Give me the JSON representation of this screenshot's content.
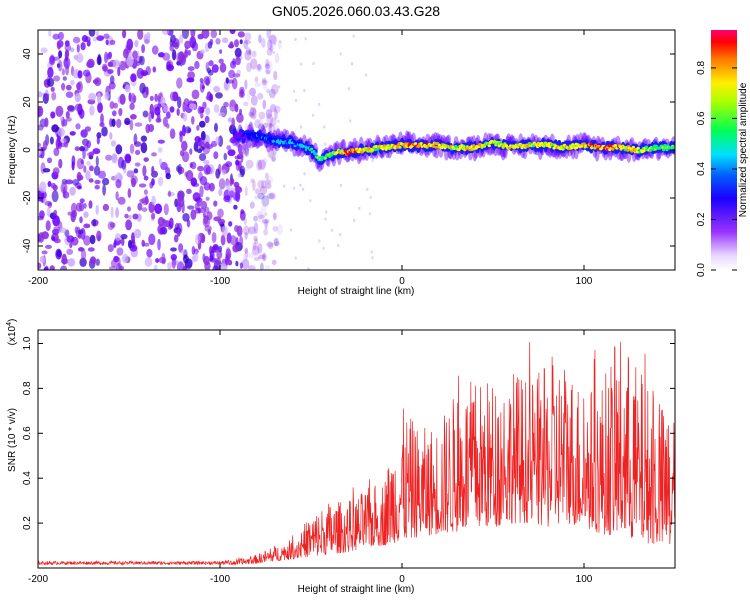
{
  "title": "GN05.2026.060.03.43.G28",
  "chart_data": [
    {
      "type": "heatmap",
      "name": "spectrogram",
      "xlabel": "Height of straight line (km)",
      "ylabel": "Frequency (Hz)",
      "xlim": [
        -200,
        150
      ],
      "ylim": [
        -50,
        50
      ],
      "xticks": [
        -200,
        -100,
        0,
        100
      ],
      "xtick_labels": [
        "-200",
        "-100",
        "0",
        "100"
      ],
      "yticks": [
        -40,
        -20,
        0,
        20,
        40
      ],
      "ytick_labels": [
        "-40",
        "-20",
        "0",
        "20",
        "40"
      ],
      "noise_region_x": [
        -200,
        -75
      ],
      "signal_track": {
        "x": [
          -92,
          -80,
          -70,
          -60,
          -50,
          -45,
          -40,
          -35,
          -30,
          -20,
          -10,
          0,
          10,
          20,
          30,
          40,
          50,
          60,
          70,
          80,
          90,
          100,
          110,
          120,
          130,
          140,
          150
        ],
        "freq": [
          6,
          6,
          4,
          3,
          0,
          -4,
          -2,
          -1,
          -1,
          0,
          1,
          2,
          2,
          2,
          1,
          1,
          3,
          1,
          2,
          2,
          1,
          2,
          1,
          1,
          0,
          1,
          1
        ],
        "amplitude": [
          0.2,
          0.3,
          0.35,
          0.35,
          0.4,
          0.5,
          0.55,
          0.65,
          0.85,
          0.7,
          0.65,
          0.7,
          0.75,
          0.7,
          0.65,
          0.7,
          0.65,
          0.7,
          0.65,
          0.7,
          0.65,
          0.7,
          0.85,
          0.7,
          0.65,
          0.55,
          0.5
        ]
      },
      "colorbar": {
        "label": "Normalized spectral amplitude",
        "range": [
          0,
          0.95
        ],
        "ticks": [
          0,
          0.2,
          0.4,
          0.6,
          0.8
        ],
        "tick_labels": [
          "0.0",
          "0.2",
          "0.4",
          "0.6",
          "0.8"
        ],
        "colors": [
          "#ffffff",
          "#cc99ff",
          "#7700ff",
          "#0000ff",
          "#00ccff",
          "#00ff66",
          "#aaff00",
          "#ffff00",
          "#ff9900",
          "#ff0000",
          "#ff0088"
        ]
      }
    },
    {
      "type": "line",
      "name": "snr",
      "xlabel": "Height of straight line (km)",
      "ylabel": "SNR (10 * v/v)",
      "yscale_label": "(x10",
      "yscale_exponent": "4",
      "yscale_close": ")",
      "xlim": [
        -200,
        150
      ],
      "ylim": [
        0,
        1.06
      ],
      "xticks": [
        -200,
        -100,
        0,
        100
      ],
      "xtick_labels": [
        "-200",
        "-100",
        "0",
        "100"
      ],
      "yticks": [
        0.2,
        0.4,
        0.6,
        0.8,
        1.0
      ],
      "ytick_labels": [
        "0.2",
        "0.4",
        "0.6",
        "0.8",
        "1.0"
      ],
      "line_color": "#ee2222",
      "envelope": {
        "x": [
          -200,
          -180,
          -160,
          -140,
          -120,
          -100,
          -90,
          -80,
          -70,
          -60,
          -50,
          -40,
          -30,
          -20,
          -10,
          0,
          10,
          20,
          30,
          40,
          50,
          60,
          70,
          80,
          90,
          100,
          110,
          120,
          130,
          140,
          150
        ],
        "base": [
          0.015,
          0.015,
          0.015,
          0.015,
          0.015,
          0.015,
          0.015,
          0.02,
          0.03,
          0.04,
          0.05,
          0.06,
          0.07,
          0.09,
          0.1,
          0.12,
          0.14,
          0.15,
          0.16,
          0.18,
          0.18,
          0.2,
          0.2,
          0.18,
          0.2,
          0.18,
          0.15,
          0.14,
          0.12,
          0.1,
          0.08
        ],
        "peak": [
          0.03,
          0.03,
          0.03,
          0.03,
          0.03,
          0.03,
          0.04,
          0.06,
          0.1,
          0.13,
          0.24,
          0.3,
          0.3,
          0.35,
          0.4,
          0.72,
          0.62,
          0.65,
          0.8,
          0.85,
          0.85,
          0.9,
          0.85,
          0.9,
          0.95,
          0.8,
          0.85,
          1.05,
          0.9,
          0.75,
          0.7
        ]
      }
    }
  ]
}
